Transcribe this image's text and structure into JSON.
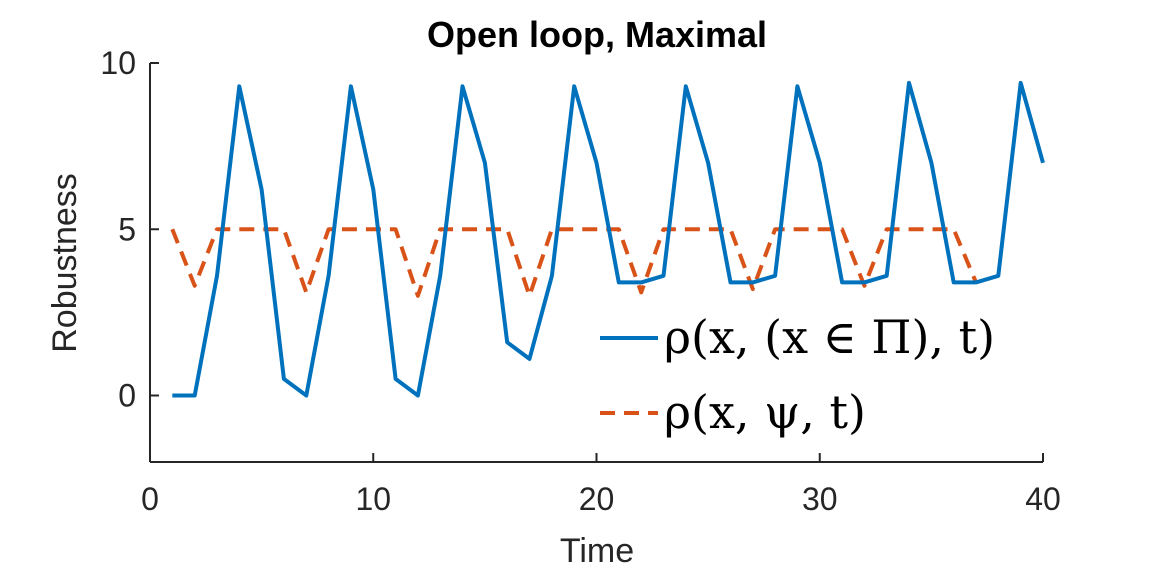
{
  "chart_data": {
    "type": "line",
    "title": "Open loop, Maximal",
    "xlabel": "Time",
    "ylabel": "Robustness",
    "xlim": [
      0,
      40
    ],
    "ylim": [
      -2,
      10
    ],
    "xticks": [
      0,
      10,
      20,
      30,
      40
    ],
    "yticks": [
      0,
      5,
      10
    ],
    "grid": false,
    "legend_position": "right",
    "series": [
      {
        "name": "ρ(x, (x ∈ Π), t)",
        "color": "#0072BD",
        "style": "solid",
        "x": [
          1,
          2,
          3,
          4,
          5,
          6,
          7,
          8,
          9,
          10,
          11,
          12,
          13,
          14,
          15,
          16,
          17,
          18,
          19,
          20,
          21,
          22,
          23,
          24,
          25,
          26,
          27,
          28,
          29,
          30,
          31,
          32,
          33,
          34,
          35,
          36,
          37,
          38,
          39,
          40
        ],
        "values": [
          0,
          0,
          3.6,
          9.3,
          6.2,
          0.5,
          0,
          3.6,
          9.3,
          6.2,
          0.5,
          0,
          3.6,
          9.3,
          7.0,
          1.6,
          1.1,
          3.6,
          9.3,
          7.0,
          3.4,
          3.4,
          3.6,
          9.3,
          7.0,
          3.4,
          3.4,
          3.6,
          9.3,
          7.0,
          3.4,
          3.4,
          3.6,
          9.4,
          7.0,
          3.4,
          3.4,
          3.6,
          9.4,
          7.0
        ]
      },
      {
        "name": "ρ(x, ψ, t)",
        "color": "#D95319",
        "style": "dashed",
        "x": [
          1,
          2,
          3,
          4,
          5,
          6,
          7,
          8,
          9,
          10,
          11,
          12,
          13,
          14,
          15,
          16,
          17,
          18,
          19,
          20,
          21,
          22,
          23,
          24,
          25,
          26,
          27,
          28,
          29,
          30,
          31,
          32,
          33,
          34,
          35,
          36,
          37
        ],
        "values": [
          5.0,
          3.3,
          5.0,
          5.0,
          5.0,
          5.0,
          3.1,
          5.0,
          5.0,
          5.0,
          5.0,
          3.0,
          5.0,
          5.0,
          5.0,
          5.0,
          3.0,
          5.0,
          5.0,
          5.0,
          5.0,
          3.1,
          5.0,
          5.0,
          5.0,
          5.0,
          3.2,
          5.0,
          5.0,
          5.0,
          5.0,
          3.3,
          5.0,
          5.0,
          5.0,
          5.0,
          3.4
        ]
      }
    ]
  }
}
